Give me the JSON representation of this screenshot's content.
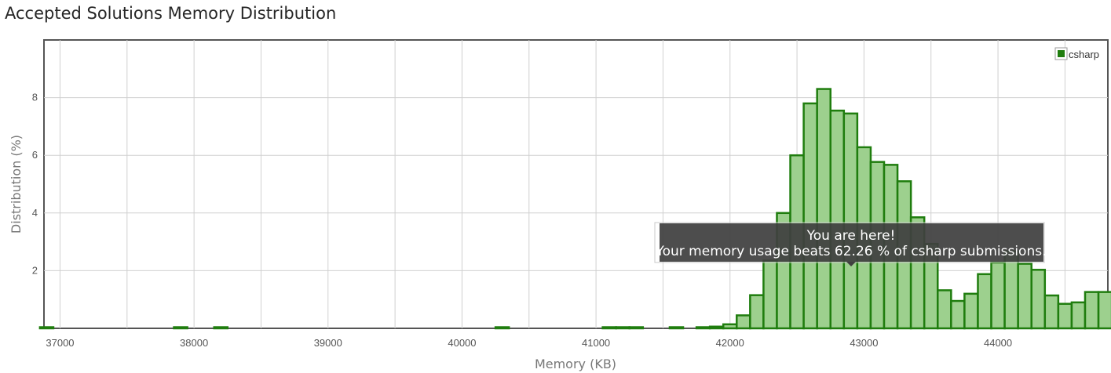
{
  "title": "Accepted Solutions Memory Distribution",
  "tooltip": {
    "line1": "You are here!",
    "line2": "Your memory usage beats 62.26 % of csharp submissions.",
    "x": 42900
  },
  "colors": {
    "bar_fill": "#9dd08e",
    "bar_stroke": "#1f7d0e",
    "legend": "#1f7d0e",
    "grid": "#d0d0d0",
    "frame": "#555555",
    "tooltip_bg": "#3f3f3f"
  },
  "chart_data": {
    "type": "bar",
    "title": "Accepted Solutions Memory Distribution",
    "xlabel": "Memory (KB)",
    "ylabel": "Distribution (%)",
    "xlim": [
      36880,
      44820
    ],
    "ylim": [
      0,
      10
    ],
    "xticks": [
      37000,
      38000,
      39000,
      40000,
      41000,
      42000,
      43000,
      44000
    ],
    "yticks": [
      2,
      4,
      6,
      8
    ],
    "bin_width": 100,
    "grid": true,
    "legend": {
      "position": "top-right",
      "entries": [
        "csharp"
      ]
    },
    "series": [
      {
        "name": "csharp",
        "x": [
          36900,
          37900,
          38200,
          40300,
          41100,
          41200,
          41300,
          41600,
          41800,
          41900,
          42000,
          42100,
          42200,
          42300,
          42400,
          42500,
          42600,
          42700,
          42800,
          42900,
          43000,
          43100,
          43200,
          43300,
          43400,
          43500,
          43600,
          43700,
          43800,
          43900,
          44000,
          44100,
          44200,
          44300,
          44400,
          44500,
          44600,
          44700,
          44800
        ],
        "values": [
          0.04,
          0.04,
          0.04,
          0.04,
          0.04,
          0.04,
          0.04,
          0.04,
          0.04,
          0.06,
          0.14,
          0.45,
          1.15,
          2.35,
          4.0,
          6.0,
          7.8,
          8.3,
          7.55,
          7.45,
          6.28,
          5.77,
          5.67,
          5.1,
          3.85,
          2.93,
          1.32,
          0.95,
          1.2,
          1.88,
          2.28,
          2.67,
          2.24,
          2.03,
          1.14,
          0.85,
          0.9,
          1.26,
          1.26
        ]
      }
    ]
  }
}
